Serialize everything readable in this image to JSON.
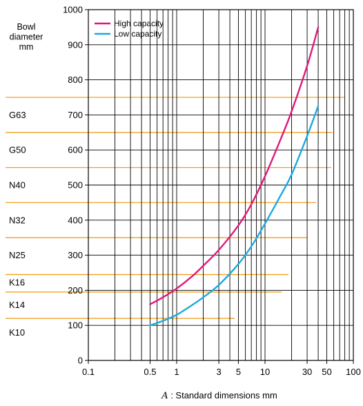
{
  "chart_data": {
    "type": "line",
    "x_scale": "log",
    "xlim": [
      0.1,
      100
    ],
    "ylim": [
      0,
      1000
    ],
    "x_ticks": [
      "0.1",
      "0.5",
      "1",
      "3",
      "5",
      "10",
      "30",
      "50",
      "100"
    ],
    "y_ticks": [
      "0",
      "100",
      "200",
      "300",
      "400",
      "500",
      "600",
      "700",
      "800",
      "900",
      "1000"
    ],
    "ylabel": [
      "Bowl",
      "diameter",
      "mm"
    ],
    "xlabel": {
      "var": "A",
      "text": " : Standard dimensions  mm"
    },
    "grid": true,
    "legend_position": "top-left",
    "series": [
      {
        "name": "High capacity",
        "color": "#e0177a",
        "x": [
          0.5,
          0.7,
          1,
          1.5,
          2,
          3,
          5,
          7,
          10,
          15,
          20,
          30,
          40
        ],
        "y": [
          160,
          180,
          205,
          240,
          270,
          315,
          385,
          445,
          525,
          630,
          710,
          840,
          950
        ]
      },
      {
        "name": "Low capacity",
        "color": "#1ba8e0",
        "x": [
          0.5,
          0.7,
          1,
          1.5,
          2,
          3,
          5,
          7,
          10,
          15,
          20,
          30,
          40
        ],
        "y": [
          100,
          113,
          130,
          158,
          180,
          215,
          275,
          325,
          390,
          470,
          530,
          640,
          725
        ]
      }
    ],
    "class_lines": {
      "color": "#f0a020",
      "y": [
        120,
        195,
        245,
        350,
        450,
        550,
        650,
        750
      ]
    },
    "classes": [
      {
        "label": "G63",
        "y": 700
      },
      {
        "label": "G50",
        "y": 600
      },
      {
        "label": "N40",
        "y": 500
      },
      {
        "label": "N32",
        "y": 400
      },
      {
        "label": "N25",
        "y": 300
      },
      {
        "label": "K16",
        "y": 222
      },
      {
        "label": "K14",
        "y": 158
      },
      {
        "label": "K10",
        "y": 80
      }
    ]
  }
}
